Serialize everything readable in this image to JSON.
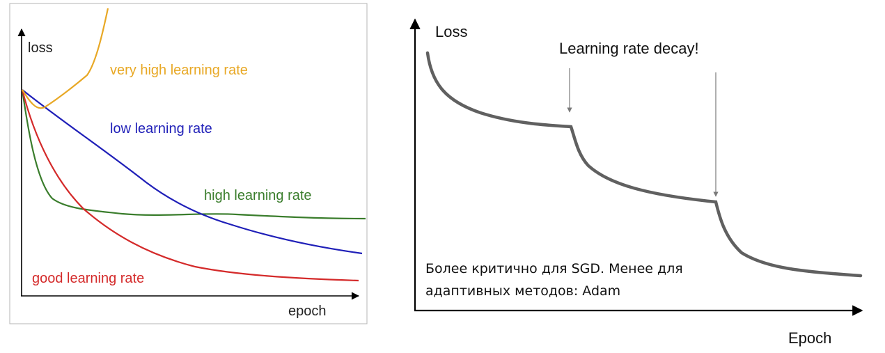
{
  "chart_data": [
    {
      "type": "line",
      "xlabel": "epoch",
      "ylabel": "loss",
      "grid": false,
      "legend": "inline labels next to curves",
      "series": [
        {
          "name": "very high learning rate",
          "color": "#E8A825"
        },
        {
          "name": "low learning rate",
          "color": "#1F1FB8"
        },
        {
          "name": "high learning rate",
          "color": "#3A7D2C"
        },
        {
          "name": "good learning rate",
          "color": "#D42A2A"
        }
      ]
    },
    {
      "type": "line",
      "xlabel": "Epoch",
      "ylabel": "Loss",
      "grid": false,
      "series": [
        {
          "name": "",
          "color": "#606060"
        }
      ],
      "annotations": [
        {
          "text": "Learning rate decay!"
        },
        {
          "text": "Более критично для SGD. Менее для"
        },
        {
          "text": "адаптивных методов: Adam"
        }
      ]
    }
  ]
}
